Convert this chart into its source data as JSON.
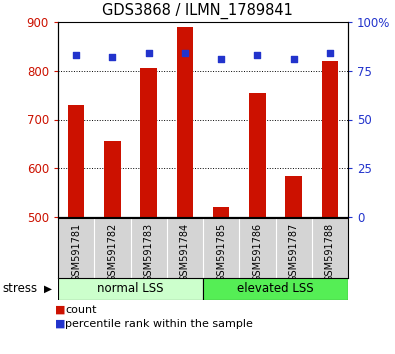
{
  "title": "GDS3868 / ILMN_1789841",
  "samples": [
    "GSM591781",
    "GSM591782",
    "GSM591783",
    "GSM591784",
    "GSM591785",
    "GSM591786",
    "GSM591787",
    "GSM591788"
  ],
  "bar_values": [
    730,
    655,
    805,
    890,
    520,
    755,
    585,
    820
  ],
  "percentile_values": [
    83,
    82,
    84,
    84,
    81,
    83,
    81,
    84
  ],
  "bar_color": "#cc1100",
  "dot_color": "#2233cc",
  "ylim_left": [
    500,
    900
  ],
  "ylim_right": [
    0,
    100
  ],
  "yticks_left": [
    500,
    600,
    700,
    800,
    900
  ],
  "yticks_right": [
    0,
    25,
    50,
    75,
    100
  ],
  "bg_color": "#ffffff",
  "group1_label": "normal LSS",
  "group2_label": "elevated LSS",
  "group1_indices": [
    0,
    1,
    2,
    3
  ],
  "group2_indices": [
    4,
    5,
    6,
    7
  ],
  "group1_color": "#ccffcc",
  "group2_color": "#55ee55",
  "tick_color_left": "#cc1100",
  "tick_color_right": "#2233cc",
  "stress_label": "stress",
  "legend_count": "count",
  "legend_percentile": "percentile rank within the sample",
  "bar_width": 0.45,
  "title_fontsize": 10.5,
  "tick_fontsize": 8.5,
  "label_fontsize": 7,
  "group_fontsize": 8.5,
  "legend_fontsize": 8,
  "stress_fontsize": 8.5
}
